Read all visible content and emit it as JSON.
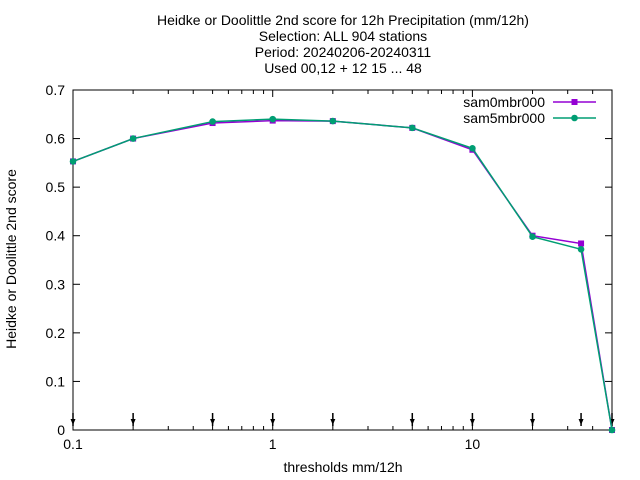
{
  "chart_data": {
    "type": "line",
    "title_lines": [
      "Heidke or Doolittle 2nd score  for 12h Precipitation (mm/12h)",
      "Selection: ALL    904 stations",
      "Period: 20240206-20240311",
      "Used 00,12 + 12 15 ... 48"
    ],
    "xlabel": "thresholds mm/12h",
    "ylabel": "Heidke or Doolittle 2nd score",
    "x_scale": "log",
    "xlim": [
      0.1,
      50
    ],
    "ylim": [
      0,
      0.7
    ],
    "x_ticks": [
      {
        "value": 0.1,
        "label": "0.1"
      },
      {
        "value": 1,
        "label": "1"
      },
      {
        "value": 10,
        "label": "10"
      }
    ],
    "y_ticks": [
      {
        "value": 0,
        "label": "0"
      },
      {
        "value": 0.1,
        "label": "0.1"
      },
      {
        "value": 0.2,
        "label": "0.2"
      },
      {
        "value": 0.3,
        "label": "0.3"
      },
      {
        "value": 0.4,
        "label": "0.4"
      },
      {
        "value": 0.5,
        "label": "0.5"
      },
      {
        "value": 0.6,
        "label": "0.6"
      },
      {
        "value": 0.7,
        "label": "0.7"
      }
    ],
    "grid": false,
    "legend_position": "top-right",
    "x": [
      0.1,
      0.2,
      0.5,
      1,
      2,
      5,
      10,
      20,
      35,
      50
    ],
    "series": [
      {
        "name": "sam0mbr000",
        "color": "#9400d3",
        "values": [
          0.553,
          0.6,
          0.632,
          0.637,
          0.636,
          0.622,
          0.577,
          0.4,
          0.384,
          0.0
        ]
      },
      {
        "name": "sam5mbr000",
        "color": "#009e73",
        "values": [
          0.553,
          0.6,
          0.635,
          0.64,
          0.636,
          0.622,
          0.58,
          0.398,
          0.372,
          0.0
        ]
      }
    ],
    "marker_x": [
      0.1,
      0.2,
      0.5,
      1,
      2,
      5,
      10,
      20,
      35,
      50
    ]
  }
}
